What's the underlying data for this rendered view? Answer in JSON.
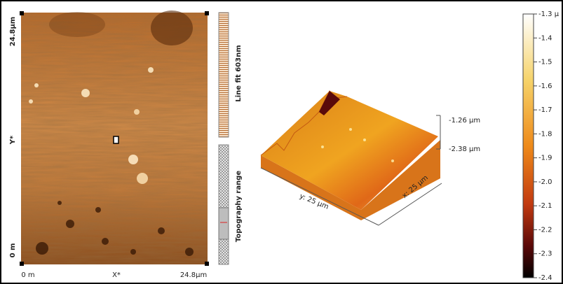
{
  "topography_image": {
    "y_axis_top": "24.8µm",
    "y_axis_label": "Y*",
    "y_axis_bottom": "0 m",
    "x_axis_left": "0 m",
    "x_axis_label": "X*",
    "x_axis_right": "24.8µm"
  },
  "line_fit_label": "Line fit 603nm",
  "topography_range_label": "Topography range",
  "view_3d": {
    "z_top": "-1.26 µm",
    "z_bottom": "-2.38 µm",
    "y_extent": "y: 25 µm",
    "x_extent": "x: 25 µm"
  },
  "colorbar": {
    "lim": [
      -2.4,
      -1.3
    ],
    "ticks": [
      {
        "value": -1.3,
        "label": "-1.3 µ"
      },
      -1.4,
      -1.5,
      -1.6,
      -1.7,
      -1.8,
      -1.9,
      {
        "value": -2,
        "label": "-2.0"
      },
      -2.1,
      -2.2,
      -2.3,
      -2.4
    ]
  }
}
